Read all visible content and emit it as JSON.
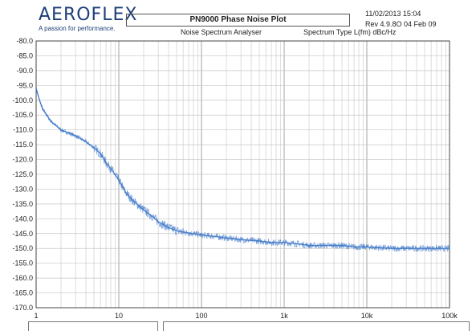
{
  "header": {
    "logo_text": "AEROFLEX",
    "logo_tagline": "A passion for performance.",
    "title": "PN9000  Phase Noise Plot",
    "subtitle": "Noise Spectrum Analyser",
    "spectrum_type": "Spectrum Type  L(fm) dBc/Hz",
    "datetime": "11/02/2013  15:04",
    "revision": "Rev 4.9.8O 04 Feb 09"
  },
  "colors": {
    "trace": "#3f78c8",
    "grid": "#c6c6c6",
    "axis": "#444444"
  },
  "chart_data": {
    "type": "line",
    "title": "PN9000  Phase Noise Plot",
    "xscale": "log",
    "xlim": [
      1,
      100000
    ],
    "ylim": [
      -170,
      -80
    ],
    "x_tick_labels": [
      "1",
      "10",
      "100",
      "1k",
      "10k",
      "100k"
    ],
    "y_tick_labels": [
      "-80.0",
      "-85.0",
      "-90.0",
      "-95.0",
      "-100.0",
      "-105.0",
      "-110.0",
      "-115.0",
      "-120.0",
      "-125.0",
      "-130.0",
      "-135.0",
      "-140.0",
      "-145.0",
      "-150.0",
      "-155.0",
      "-160.0",
      "-165.0",
      "-170.0"
    ],
    "grid": true,
    "series": [
      {
        "x": [
          1,
          1.1,
          1.2,
          1.5,
          2,
          3,
          4,
          5,
          6,
          7,
          8,
          10,
          12,
          15,
          20,
          25,
          30,
          40,
          50,
          60,
          80,
          100,
          150,
          200,
          300,
          500,
          700,
          1000,
          1500,
          2000,
          3000,
          5000,
          7000,
          10000,
          20000,
          50000,
          100000
        ],
        "y": [
          -96,
          -100,
          -103,
          -107,
          -110,
          -112,
          -114,
          -116,
          -118,
          -121,
          -123,
          -127,
          -131,
          -134,
          -137,
          -139,
          -141,
          -143,
          -144,
          -144.5,
          -145,
          -145.5,
          -146,
          -146.5,
          -147,
          -147.5,
          -148,
          -148,
          -148.5,
          -149,
          -149,
          -149,
          -149.5,
          -149.5,
          -150,
          -150,
          -150
        ]
      }
    ]
  }
}
